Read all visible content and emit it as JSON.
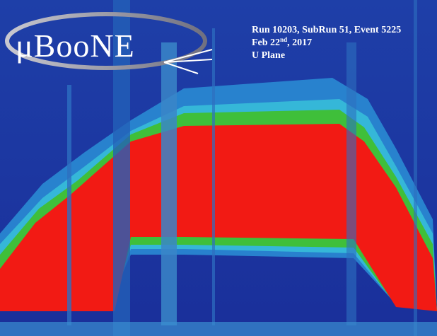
{
  "logo": "μBooNE",
  "info": {
    "run": "Run 10203, SubRun 51, Event 5225",
    "date": {
      "main": "Feb 22",
      "sup": "nd",
      "rest": ", 2017"
    },
    "plane": "U Plane"
  }
}
